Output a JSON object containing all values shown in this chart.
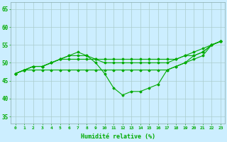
{
  "xlabel": "Humidité relative (%)",
  "background_color": "#cceeff",
  "grid_color": "#aacccc",
  "line_color": "#00aa00",
  "xlim": [
    -0.5,
    23.5
  ],
  "ylim": [
    33,
    67
  ],
  "yticks": [
    35,
    40,
    45,
    50,
    55,
    60,
    65
  ],
  "xticks": [
    0,
    1,
    2,
    3,
    4,
    5,
    6,
    7,
    8,
    9,
    10,
    11,
    12,
    13,
    14,
    15,
    16,
    17,
    18,
    19,
    20,
    21,
    22,
    23
  ],
  "series": [
    [
      47,
      48,
      49,
      49,
      50,
      51,
      52,
      53,
      52,
      50,
      47,
      43,
      41,
      42,
      42,
      43,
      44,
      48,
      49,
      50,
      52,
      53,
      55,
      56
    ],
    [
      47,
      48,
      49,
      49,
      50,
      51,
      52,
      52,
      52,
      51,
      50,
      50,
      50,
      50,
      50,
      50,
      50,
      50,
      51,
      52,
      53,
      54,
      55,
      56
    ],
    [
      47,
      48,
      49,
      49,
      50,
      51,
      51,
      51,
      51,
      51,
      51,
      51,
      51,
      51,
      51,
      51,
      51,
      51,
      51,
      52,
      52,
      53,
      55,
      56
    ],
    [
      47,
      48,
      48,
      48,
      48,
      48,
      48,
      48,
      48,
      48,
      48,
      48,
      48,
      48,
      48,
      48,
      48,
      48,
      49,
      50,
      51,
      52,
      55,
      56
    ]
  ]
}
